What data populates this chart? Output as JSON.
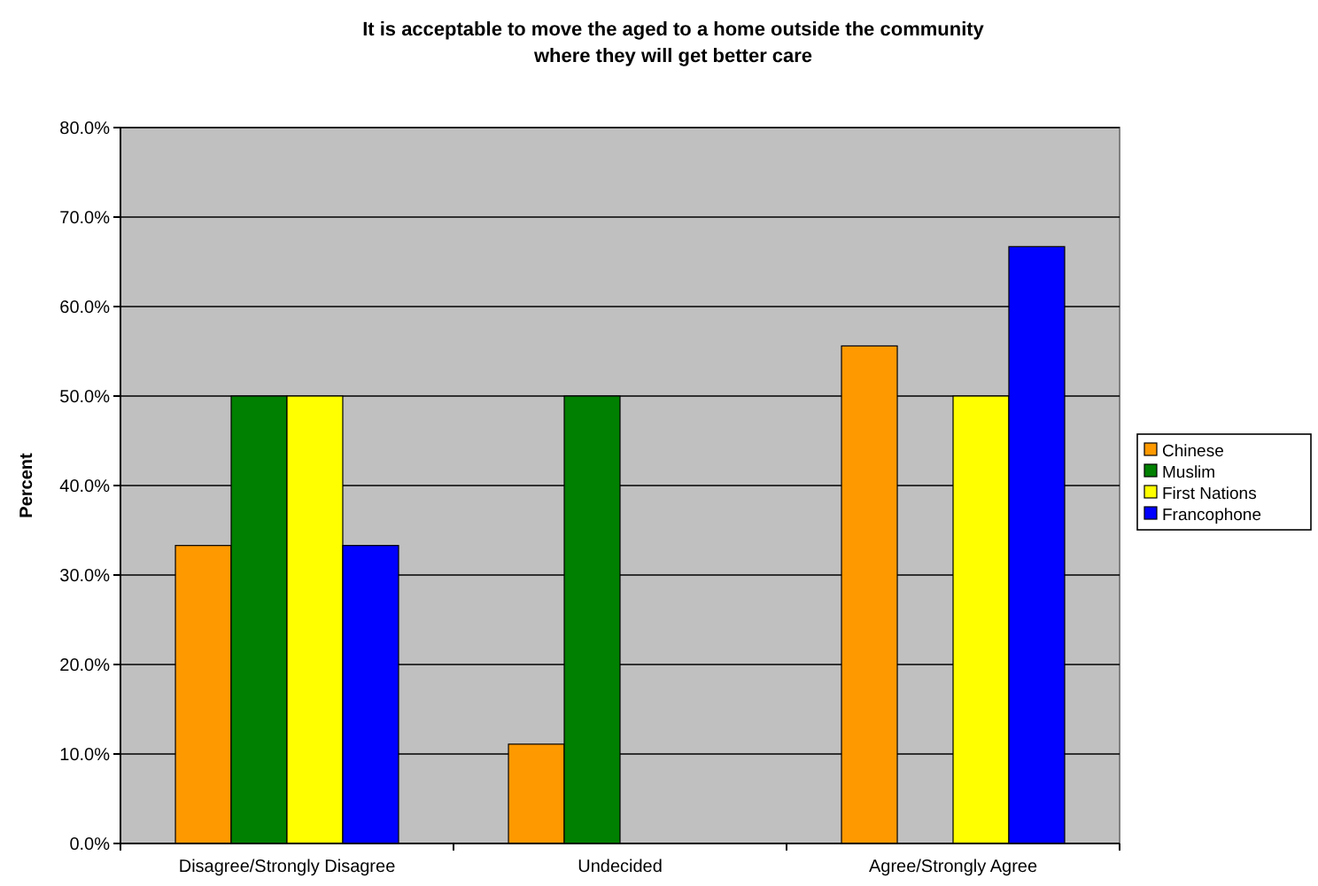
{
  "chart_data": {
    "type": "bar",
    "title": "It is acceptable to move the aged to a home outside the community\nwhere they will get better care",
    "ylabel": "Percent",
    "categories": [
      "Disagree/Strongly Disagree",
      "Undecided",
      "Agree/Strongly Agree"
    ],
    "series": [
      {
        "name": "Chinese",
        "color": "#ff9900",
        "values": [
          33.3,
          11.1,
          55.6
        ]
      },
      {
        "name": "Muslim",
        "color": "#008000",
        "values": [
          50,
          50,
          0
        ]
      },
      {
        "name": "First Nations",
        "color": "#ffff00",
        "values": [
          50,
          0,
          50
        ]
      },
      {
        "name": "Francophone",
        "color": "#0000ff",
        "values": [
          33.3,
          0,
          66.7
        ]
      }
    ],
    "ylim": [
      0,
      80
    ],
    "yticks": [
      {
        "value": 0,
        "label": "0.0%"
      },
      {
        "value": 10,
        "label": "10.0%"
      },
      {
        "value": 20,
        "label": "20.0%"
      },
      {
        "value": 30,
        "label": "30.0%"
      },
      {
        "value": 40,
        "label": "40.0%"
      },
      {
        "value": 50,
        "label": "50.0%"
      },
      {
        "value": 60,
        "label": "60.0%"
      },
      {
        "value": 70,
        "label": "70.0%"
      },
      {
        "value": 80,
        "label": "80.0%"
      }
    ],
    "grid": "y",
    "legend": "right"
  }
}
